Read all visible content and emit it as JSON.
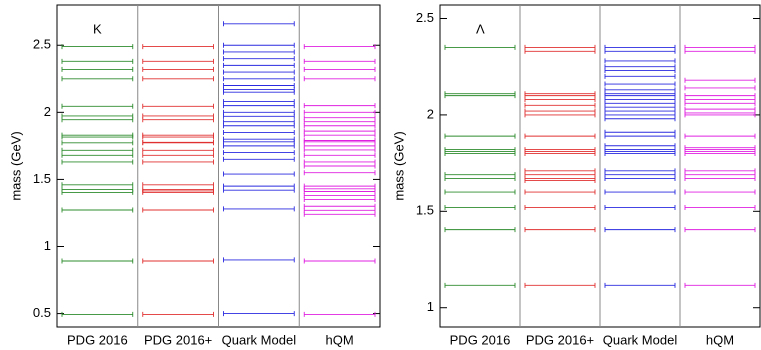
{
  "chart_data": [
    {
      "type": "levels",
      "annotation": "K",
      "y_label": "mass (GeV)",
      "ylim": [
        0.4,
        2.8
      ],
      "yticks": [
        0.5,
        1,
        1.5,
        2,
        2.5
      ],
      "series": [
        {
          "name": "PDG 2016",
          "color": "#2e8b2e",
          "values": [
            0.494,
            0.892,
            1.272,
            1.403,
            1.425,
            1.46,
            1.63,
            1.68,
            1.717,
            1.773,
            1.816,
            1.83,
            1.945,
            1.973,
            2.045,
            2.25,
            2.32,
            2.38,
            2.49
          ]
        },
        {
          "name": "PDG 2016+",
          "color": "#e03030",
          "values": [
            0.494,
            0.892,
            1.272,
            1.403,
            1.414,
            1.425,
            1.46,
            1.63,
            1.68,
            1.717,
            1.773,
            1.776,
            1.816,
            1.83,
            1.945,
            1.973,
            2.045,
            2.25,
            2.32,
            2.38,
            2.49
          ]
        },
        {
          "name": "Quark Model",
          "color": "#2a2ae0",
          "values": [
            0.5,
            0.9,
            1.28,
            1.42,
            1.45,
            1.54,
            1.65,
            1.7,
            1.75,
            1.78,
            1.8,
            1.85,
            1.9,
            1.93,
            1.97,
            2.0,
            2.05,
            2.08,
            2.15,
            2.17,
            2.2,
            2.25,
            2.3,
            2.35,
            2.4,
            2.45,
            2.5,
            2.66
          ]
        },
        {
          "name": "hQM",
          "color": "#e020e0",
          "values": [
            0.494,
            0.892,
            1.24,
            1.27,
            1.3,
            1.35,
            1.38,
            1.41,
            1.43,
            1.45,
            1.55,
            1.6,
            1.63,
            1.68,
            1.72,
            1.75,
            1.78,
            1.79,
            1.83,
            1.86,
            1.9,
            1.93,
            1.96,
            2.0,
            2.05,
            2.25,
            2.32,
            2.38,
            2.49
          ]
        }
      ]
    },
    {
      "type": "levels",
      "annotation": "Λ",
      "y_label": "mass (GeV)",
      "ylim": [
        0.9,
        2.57
      ],
      "yticks": [
        1,
        1.5,
        2,
        2.5
      ],
      "series": [
        {
          "name": "PDG 2016",
          "color": "#2e8b2e",
          "values": [
            1.116,
            1.405,
            1.52,
            1.6,
            1.67,
            1.69,
            1.8,
            1.81,
            1.82,
            1.89,
            2.1,
            2.11,
            2.35
          ]
        },
        {
          "name": "PDG 2016+",
          "color": "#e03030",
          "values": [
            1.116,
            1.405,
            1.52,
            1.6,
            1.66,
            1.67,
            1.69,
            1.71,
            1.8,
            1.81,
            1.82,
            1.89,
            2.0,
            2.02,
            2.05,
            2.08,
            2.1,
            2.11,
            2.33,
            2.35
          ]
        },
        {
          "name": "Quark Model",
          "color": "#2a2ae0",
          "values": [
            1.116,
            1.405,
            1.52,
            1.6,
            1.67,
            1.69,
            1.71,
            1.8,
            1.81,
            1.82,
            1.84,
            1.89,
            1.91,
            1.98,
            2.0,
            2.02,
            2.04,
            2.06,
            2.08,
            2.1,
            2.11,
            2.13,
            2.16,
            2.2,
            2.23,
            2.25,
            2.28,
            2.33,
            2.35
          ]
        },
        {
          "name": "hQM",
          "color": "#e020e0",
          "values": [
            1.116,
            1.405,
            1.52,
            1.6,
            1.67,
            1.69,
            1.71,
            1.8,
            1.81,
            1.82,
            1.83,
            1.89,
            2.0,
            2.01,
            2.03,
            2.06,
            2.08,
            2.1,
            2.14,
            2.18,
            2.33,
            2.35
          ]
        }
      ]
    }
  ]
}
